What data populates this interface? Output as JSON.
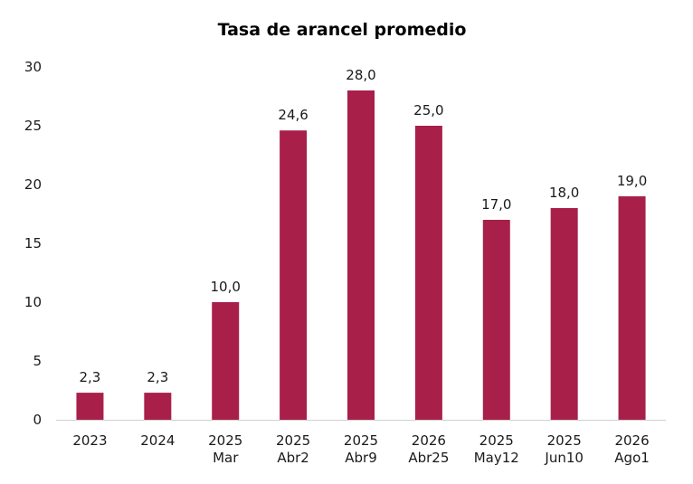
{
  "chart_data": {
    "type": "bar",
    "title": "Tasa de arancel promedio",
    "xlabel": "",
    "ylabel": "",
    "ylim": [
      0,
      30
    ],
    "yticks": [
      "0",
      "5",
      "10",
      "15",
      "20",
      "25",
      "30"
    ],
    "grid": false,
    "categories": [
      [
        "2023"
      ],
      [
        "2024"
      ],
      [
        "2025",
        "Mar"
      ],
      [
        "2025",
        "Abr2"
      ],
      [
        "2025",
        "Abr9"
      ],
      [
        "2026",
        "Abr25"
      ],
      [
        "2025",
        "May12"
      ],
      [
        "2025",
        "Jun10"
      ],
      [
        "2026",
        "Ago1"
      ]
    ],
    "values": [
      2.3,
      2.3,
      10.0,
      24.6,
      28.0,
      25.0,
      17.0,
      18.0,
      19.0
    ],
    "data_labels": [
      "2,3",
      "2,3",
      "10,0",
      "24,6",
      "28,0",
      "25,0",
      "17,0",
      "18,0",
      "19,0"
    ],
    "bar_color": "#A8204A",
    "axis_color": "#d0d0d0"
  }
}
